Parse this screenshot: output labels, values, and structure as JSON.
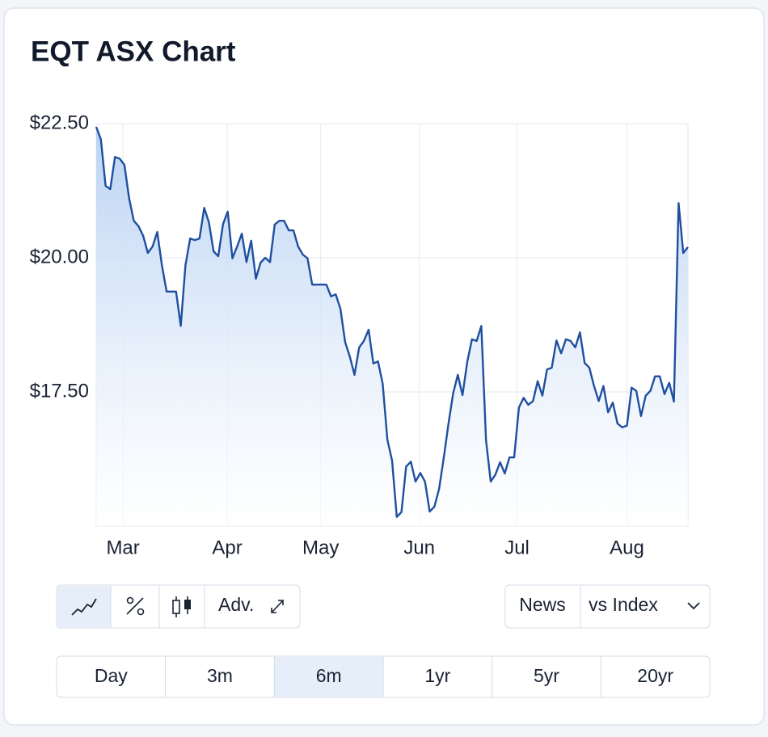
{
  "chart_data": {
    "type": "line",
    "title": "EQT ASX Chart",
    "color": "#1f4fa0",
    "values": [
      22.44,
      22.21,
      21.34,
      21.28,
      21.88,
      21.85,
      21.73,
      21.11,
      20.69,
      20.59,
      20.41,
      20.09,
      20.21,
      20.48,
      19.86,
      19.37,
      19.37,
      19.37,
      18.73,
      19.86,
      20.36,
      20.33,
      20.36,
      20.93,
      20.66,
      20.12,
      20.03,
      20.63,
      20.86,
      19.99,
      20.21,
      20.45,
      19.92,
      20.32,
      19.61,
      19.91,
      20.0,
      19.92,
      20.62,
      20.69,
      20.69,
      20.51,
      20.51,
      20.21,
      20.06,
      19.99,
      19.5,
      19.5,
      19.5,
      19.5,
      19.28,
      19.32,
      19.05,
      18.43,
      18.16,
      17.82,
      18.33,
      18.45,
      18.66,
      18.03,
      18.07,
      17.65,
      16.61,
      16.22,
      15.17,
      15.26,
      16.11,
      16.2,
      15.83,
      15.99,
      15.83,
      15.27,
      15.36,
      15.69,
      16.27,
      16.9,
      17.47,
      17.82,
      17.44,
      18.06,
      18.48,
      18.45,
      18.73,
      16.6,
      15.83,
      15.96,
      16.19,
      15.98,
      16.28,
      16.28,
      17.21,
      17.39,
      17.26,
      17.33,
      17.7,
      17.43,
      17.92,
      17.95,
      18.46,
      18.22,
      18.48,
      18.45,
      18.33,
      18.61,
      18.04,
      17.95,
      17.61,
      17.33,
      17.61,
      17.12,
      17.3,
      16.91,
      16.84,
      16.87,
      17.58,
      17.52,
      17.05,
      17.43,
      17.52,
      17.79,
      17.79,
      17.46,
      17.67,
      17.32,
      21.02,
      20.09,
      20.2
    ],
    "xlim": [
      0,
      126
    ],
    "xticks": [
      {
        "value": 5.7,
        "label": "Mar"
      },
      {
        "value": 27.9,
        "label": "Apr"
      },
      {
        "value": 47.8,
        "label": "May"
      },
      {
        "value": 68.8,
        "label": "Jun"
      },
      {
        "value": 89.6,
        "label": "Jul"
      },
      {
        "value": 113.0,
        "label": "Aug"
      }
    ],
    "ylim": [
      15,
      22.5
    ],
    "yticks": [
      {
        "value": 17.5,
        "label": "$17.50"
      },
      {
        "value": 20,
        "label": "$20.00"
      },
      {
        "value": 22.5,
        "label": "$22.50"
      }
    ],
    "grid": true
  },
  "controls": {
    "advanced": "Adv.",
    "options": [
      "News",
      "vs Index"
    ],
    "ranges": [
      "Day",
      "3m",
      "6m",
      "1yr",
      "5yr",
      "20yr"
    ],
    "active_range": "6m"
  }
}
